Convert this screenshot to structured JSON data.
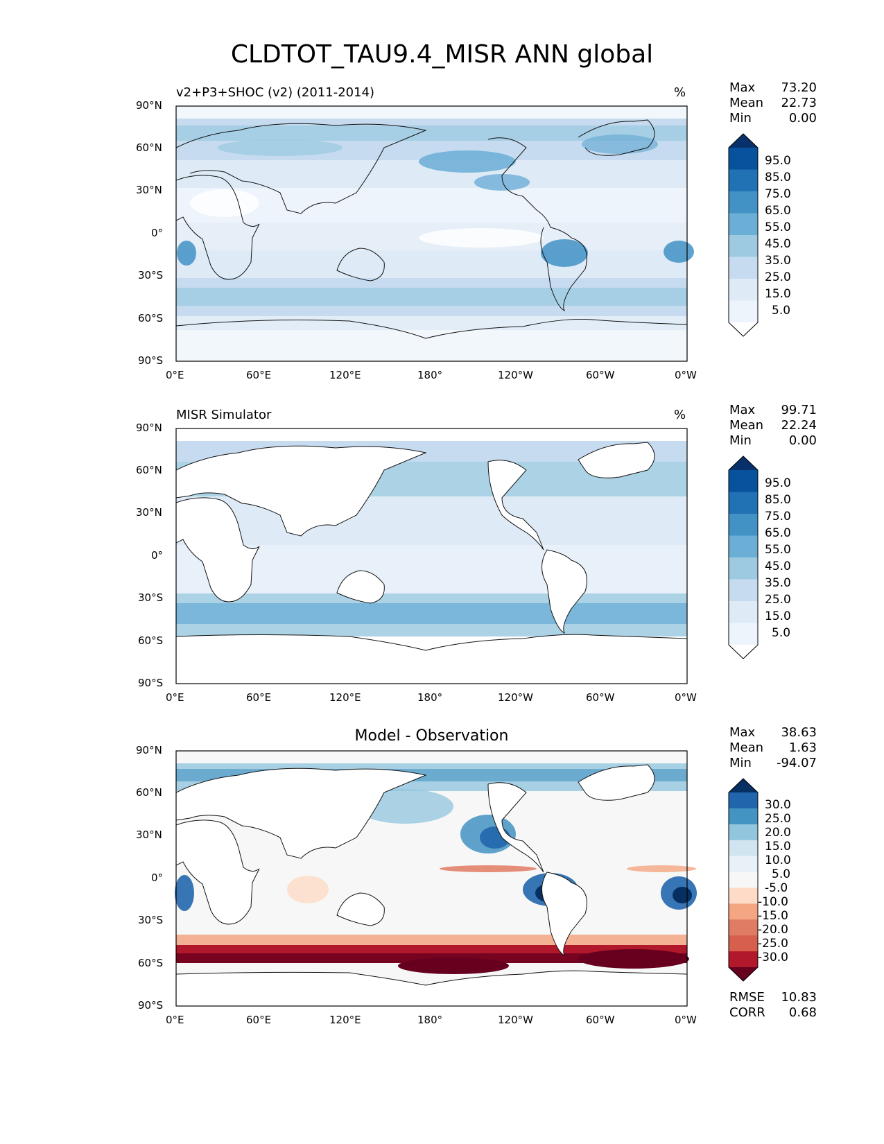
{
  "title": "CLDTOT_TAU9.4_MISR ANN global",
  "lat_ticks": [
    "90°N",
    "60°N",
    "30°N",
    "0°",
    "30°S",
    "60°S",
    "90°S"
  ],
  "lon_ticks": [
    "0°E",
    "60°E",
    "120°E",
    "180°",
    "120°W",
    "60°W",
    "0°W"
  ],
  "panels": [
    {
      "title": "v2+P3+SHOC (v2) (2011-2014)",
      "units": "%",
      "stats": [
        {
          "label": "Max",
          "value": "73.20"
        },
        {
          "label": "Mean",
          "value": "22.73"
        },
        {
          "label": "Min",
          "value": "0.00"
        }
      ],
      "colorbar_labels": [
        "95.0",
        "85.0",
        "75.0",
        "65.0",
        "55.0",
        "45.0",
        "35.0",
        "25.0",
        "15.0",
        "5.0"
      ],
      "colorbar_colors": [
        "#08306b",
        "#08519c",
        "#2171b5",
        "#4292c6",
        "#6baed6",
        "#9ecae1",
        "#c6dbef",
        "#deebf7",
        "#eef4fb",
        "#ffffff"
      ]
    },
    {
      "title": "MISR Simulator",
      "units": "%",
      "stats": [
        {
          "label": "Max",
          "value": "99.71"
        },
        {
          "label": "Mean",
          "value": "22.24"
        },
        {
          "label": "Min",
          "value": "0.00"
        }
      ],
      "colorbar_labels": [
        "95.0",
        "85.0",
        "75.0",
        "65.0",
        "55.0",
        "45.0",
        "35.0",
        "25.0",
        "15.0",
        "5.0"
      ],
      "colorbar_colors": [
        "#08306b",
        "#08519c",
        "#2171b5",
        "#4292c6",
        "#6baed6",
        "#9ecae1",
        "#c6dbef",
        "#deebf7",
        "#eef4fb",
        "#ffffff"
      ]
    },
    {
      "title": "Model - Observation",
      "stats": [
        {
          "label": "Max",
          "value": "38.63"
        },
        {
          "label": "Mean",
          "value": "1.63"
        },
        {
          "label": "Min",
          "value": "-94.07"
        }
      ],
      "colorbar_labels": [
        "30.0",
        "25.0",
        "20.0",
        "15.0",
        "10.0",
        "5.0",
        "-5.0",
        "-10.0",
        "-15.0",
        "-20.0",
        "-25.0",
        "-30.0"
      ],
      "colorbar_colors": [
        "#053061",
        "#2166ac",
        "#4393c3",
        "#92c5de",
        "#d1e5f0",
        "#e8f1f7",
        "#f7f7f7",
        "#fddbc7",
        "#f4a582",
        "#e07b64",
        "#d6604d",
        "#b2182b",
        "#67001f"
      ],
      "metrics": [
        {
          "label": "RMSE",
          "value": "10.83"
        },
        {
          "label": "CORR",
          "value": "0.68"
        }
      ]
    }
  ]
}
